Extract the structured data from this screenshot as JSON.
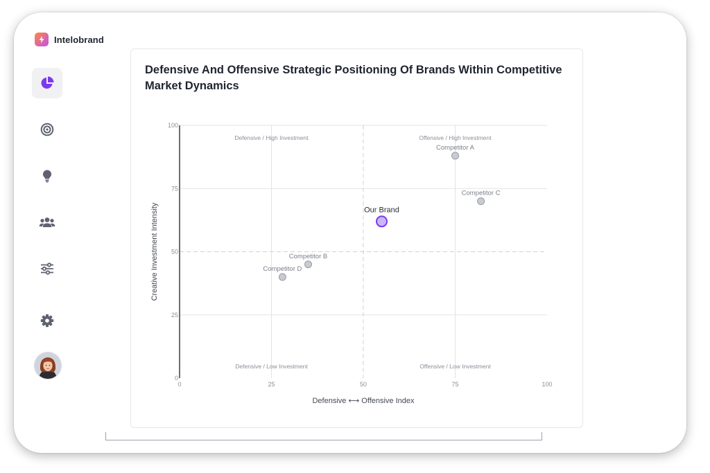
{
  "app": {
    "name": "Intelobrand"
  },
  "nav": {
    "items": [
      {
        "icon": "pie-chart-icon",
        "active": true
      },
      {
        "icon": "target-icon",
        "active": false
      },
      {
        "icon": "lightbulb-icon",
        "active": false
      },
      {
        "icon": "users-icon",
        "active": false
      },
      {
        "icon": "sliders-icon",
        "active": false
      },
      {
        "icon": "gear-icon",
        "active": false
      }
    ],
    "avatar": "user-avatar"
  },
  "colors": {
    "accent": "#7c3aed",
    "accent_fill": "#c9b6f7",
    "competitor_fill": "#c9cbd1",
    "competitor_stroke": "#9a9ca4",
    "grid": "#e2e3e6"
  },
  "chart_data": {
    "type": "scatter",
    "title": "Defensive And Offensive Strategic Positioning Of Brands Within Competitive Market Dynamics",
    "xlabel": "Defensive ⟷ Offensive Index",
    "ylabel": "Creative Investment Intensity",
    "xlim": [
      0,
      100
    ],
    "ylim": [
      0,
      100
    ],
    "xticks": [
      0,
      25,
      50,
      75,
      100
    ],
    "yticks": [
      0,
      25,
      50,
      75,
      100
    ],
    "grid": true,
    "threshold_lines": {
      "x": 50,
      "y": 50
    },
    "quadrant_labels": [
      {
        "text": "Defensive / High Investment",
        "position": "top-left"
      },
      {
        "text": "Offensive / High Investment",
        "position": "top-right"
      },
      {
        "text": "Defensive / Low Investment",
        "position": "bottom-left"
      },
      {
        "text": "Offensive / Low Investment",
        "position": "bottom-right"
      }
    ],
    "points": [
      {
        "name": "Our Brand",
        "x": 55,
        "y": 62,
        "highlight": true
      },
      {
        "name": "Competitor A",
        "x": 75,
        "y": 88,
        "highlight": false
      },
      {
        "name": "Competitor B",
        "x": 35,
        "y": 45,
        "highlight": false
      },
      {
        "name": "Competitor C",
        "x": 82,
        "y": 70,
        "highlight": false
      },
      {
        "name": "Competitor D",
        "x": 28,
        "y": 40,
        "highlight": false
      }
    ]
  }
}
